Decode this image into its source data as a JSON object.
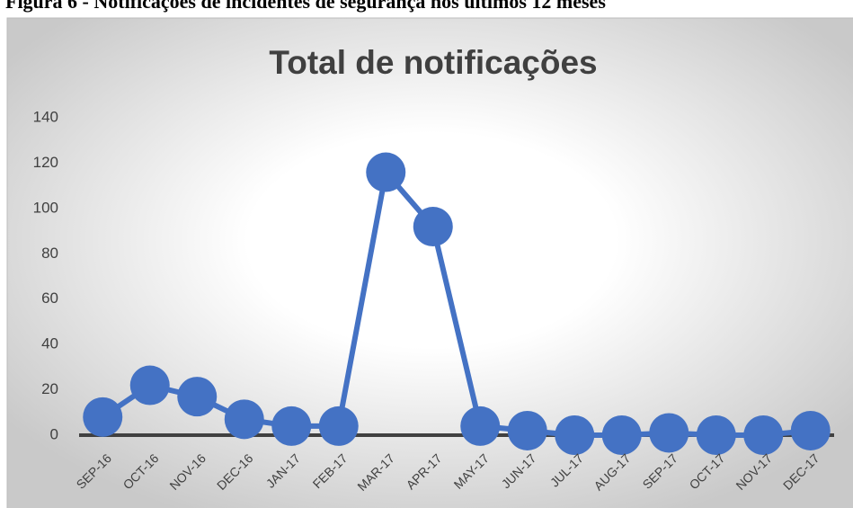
{
  "caption": "Figura 6 - Notificações de incidentes de segurança nos últimos 12 meses",
  "chart_data": {
    "type": "line",
    "title": "Total de notificações",
    "categories": [
      "SEP-16",
      "OCT-16",
      "NOV-16",
      "DEC-16",
      "JAN-17",
      "FEB-17",
      "MAR-17",
      "APR-17",
      "MAY-17",
      "JUN-17",
      "JUL-17",
      "AUG-17",
      "SEP-17",
      "OCT-17",
      "NOV-17",
      "DEC-17"
    ],
    "values": [
      8,
      22,
      17,
      7,
      4,
      4,
      116,
      92,
      4,
      2,
      0,
      0,
      1,
      0,
      0,
      2
    ],
    "color": "#4472c4",
    "ylim": [
      0,
      140
    ],
    "yticks": [
      0,
      20,
      40,
      60,
      80,
      100,
      120,
      140
    ],
    "grid": false
  }
}
